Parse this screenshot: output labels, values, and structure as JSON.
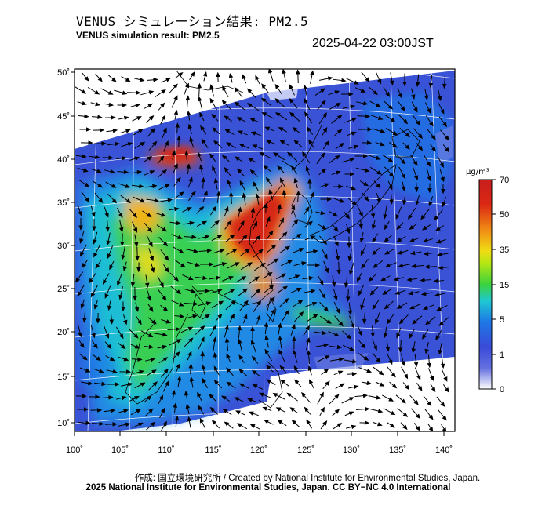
{
  "header": {
    "title_jp": "VENUS シミュレーション結果: PM2.5",
    "title_en": "VENUS simulation result: PM2.5",
    "timestamp": "2025-04-22 03:00JST"
  },
  "map": {
    "lat_labels": [
      "50˚",
      "45˚",
      "40˚",
      "35˚",
      "30˚",
      "25˚",
      "20˚",
      "15˚",
      "10˚"
    ],
    "lon_labels": [
      "100˚",
      "105˚",
      "110˚",
      "115˚",
      "120˚",
      "125˚",
      "130˚",
      "135˚",
      "140˚"
    ]
  },
  "colorbar": {
    "unit": "μg/m³",
    "ticks": [
      "70",
      "50",
      "35",
      "15",
      "5",
      "1",
      "0"
    ],
    "colors": [
      "#ffffff",
      "#3a4ad8",
      "#1e78e6",
      "#1ec8d2",
      "#3cd23c",
      "#f0dc14",
      "#f08c14",
      "#dc2814",
      "#c81e1e"
    ]
  },
  "footer": {
    "credit_line1": "作成: 国立環境研究所 / Created by National Institute for Environmental Studies, Japan.",
    "credit_line2": "2025 National Institute for Environmental Studies, Japan. CC BY−NC 4.0 International"
  }
}
